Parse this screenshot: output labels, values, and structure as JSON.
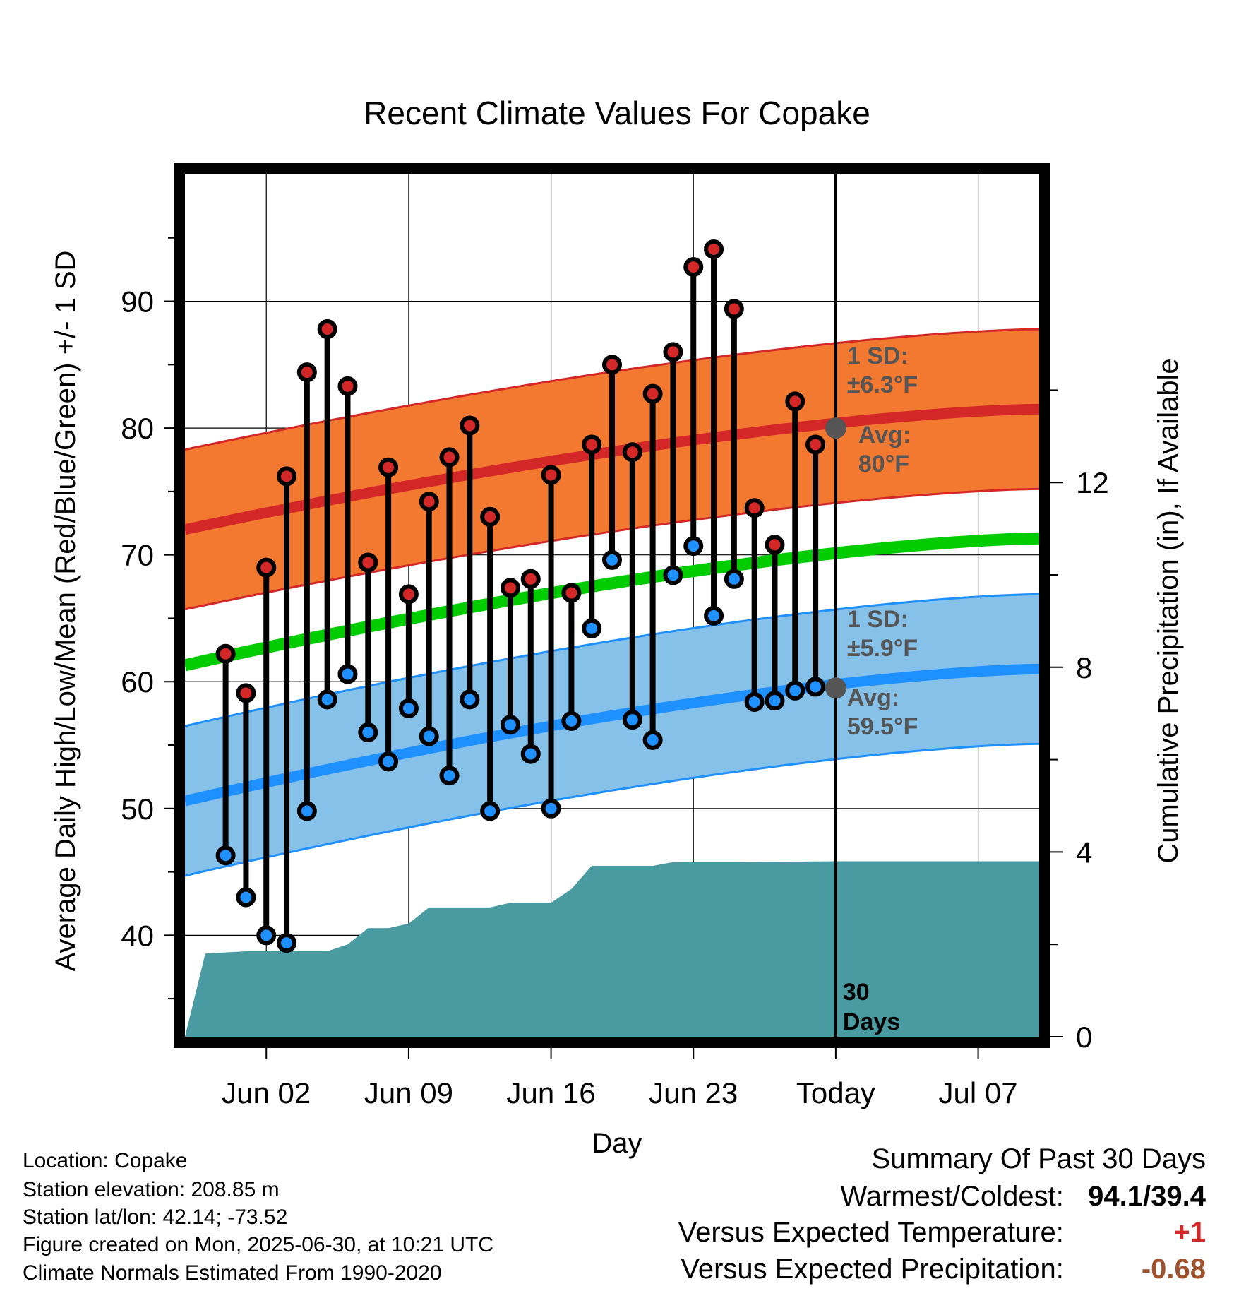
{
  "chart_data": {
    "type": "line",
    "title": "Recent Climate Values For Copake",
    "xlabel": "Day",
    "ylabel_left": "Average Daily High/Low/Mean (Red/Blue/Green) +/- 1 SD",
    "ylabel_right": "Cumulative Precipitation (in), If Available",
    "x_ticks": [
      "Jun 02",
      "Jun 09",
      "Jun 16",
      "Jun 23",
      "Today",
      "Jul 07"
    ],
    "y_ticks_left": [
      40,
      50,
      60,
      70,
      80,
      90
    ],
    "y_ticks_right": [
      0,
      4,
      8,
      12
    ],
    "ylim_left": [
      32,
      100
    ],
    "ylim_right": [
      0,
      18.67
    ],
    "x_range": [
      "2025-05-29",
      "2025-07-10"
    ],
    "days": [
      "2025-05-31",
      "2025-06-01",
      "2025-06-02",
      "2025-06-03",
      "2025-06-04",
      "2025-06-05",
      "2025-06-06",
      "2025-06-07",
      "2025-06-08",
      "2025-06-09",
      "2025-06-10",
      "2025-06-11",
      "2025-06-12",
      "2025-06-13",
      "2025-06-14",
      "2025-06-15",
      "2025-06-16",
      "2025-06-17",
      "2025-06-18",
      "2025-06-19",
      "2025-06-20",
      "2025-06-21",
      "2025-06-22",
      "2025-06-23",
      "2025-06-24",
      "2025-06-25",
      "2025-06-26",
      "2025-06-27",
      "2025-06-28",
      "2025-06-29"
    ],
    "daily_high": [
      62.2,
      59.1,
      69.0,
      76.2,
      84.4,
      87.8,
      83.3,
      69.4,
      76.9,
      66.9,
      74.2,
      77.7,
      80.2,
      73.0,
      67.4,
      68.1,
      76.3,
      67.0,
      78.7,
      85.0,
      78.1,
      82.7,
      86.0,
      92.7,
      94.1,
      89.4,
      73.7,
      70.8,
      82.1,
      78.7
    ],
    "daily_low": [
      46.3,
      43.0,
      40.0,
      39.4,
      49.8,
      58.6,
      60.6,
      56.0,
      53.7,
      57.9,
      55.7,
      52.6,
      58.6,
      49.8,
      56.6,
      54.3,
      50.0,
      56.9,
      64.2,
      69.6,
      57.0,
      55.4,
      68.4,
      70.7,
      65.2,
      68.1,
      58.4,
      58.5,
      59.3,
      59.6
    ],
    "normal_high": {
      "start": 72.0,
      "end": 81.5
    },
    "normal_low": {
      "start": 50.6,
      "end": 61.0
    },
    "normal_mean": {
      "start": 61.3,
      "end": 71.3
    },
    "sd_high": 6.3,
    "sd_low": 5.9,
    "cumulative_precip": [
      [
        "2025-05-29",
        0.0
      ],
      [
        "2025-05-30",
        1.8
      ],
      [
        "2025-06-01",
        1.85
      ],
      [
        "2025-06-02",
        1.85
      ],
      [
        "2025-06-05",
        1.85
      ],
      [
        "2025-06-06",
        2.0
      ],
      [
        "2025-06-07",
        2.35
      ],
      [
        "2025-06-08",
        2.35
      ],
      [
        "2025-06-09",
        2.45
      ],
      [
        "2025-06-10",
        2.8
      ],
      [
        "2025-06-13",
        2.8
      ],
      [
        "2025-06-14",
        2.9
      ],
      [
        "2025-06-16",
        2.9
      ],
      [
        "2025-06-17",
        3.2
      ],
      [
        "2025-06-18",
        3.7
      ],
      [
        "2025-06-21",
        3.7
      ],
      [
        "2025-06-22",
        3.78
      ],
      [
        "2025-06-25",
        3.78
      ],
      [
        "2025-06-30",
        3.8
      ],
      [
        "2025-07-10",
        3.8
      ]
    ],
    "today": "2025-06-30",
    "colors": {
      "high_band": "#f37930",
      "high_line": "#d42828",
      "low_band": "#85c1e9",
      "low_line": "#1e90ff",
      "mean_line": "#00cc00",
      "precip": "#4a9aa2",
      "high_dot": "#d42828",
      "low_dot": "#1e90ff"
    },
    "annotations": {
      "high_sd_label": "1 SD:",
      "high_sd_value": "±6.3°F",
      "high_avg_label": "Avg:",
      "high_avg_value": "80°F",
      "low_sd_label": "1 SD:",
      "low_sd_value": "±5.9°F",
      "low_avg_label": "Avg:",
      "low_avg_value": "59.5°F",
      "today_avg_high": 80.0,
      "today_avg_low": 59.5,
      "days_line1": "30",
      "days_line2": "Days"
    }
  },
  "footer": {
    "location": "Location: Copake",
    "elevation": "Station elevation: 208.85 m",
    "latlon": "Station lat/lon: 42.14; -73.52",
    "created": "Figure created on Mon, 2025-06-30, at 10:21 UTC",
    "normals": "Climate Normals Estimated From 1990-2020"
  },
  "summary": {
    "heading": "Summary Of Past 30 Days",
    "warmest_coldest_label": "Warmest/Coldest:",
    "warmest_coldest_value": "94.1/39.4",
    "temp_label": "Versus Expected Temperature:",
    "temp_value": "+1",
    "temp_color": "#d42828",
    "precip_label": "Versus Expected Precipitation:",
    "precip_value": "-0.68",
    "precip_color": "#a0522d"
  }
}
